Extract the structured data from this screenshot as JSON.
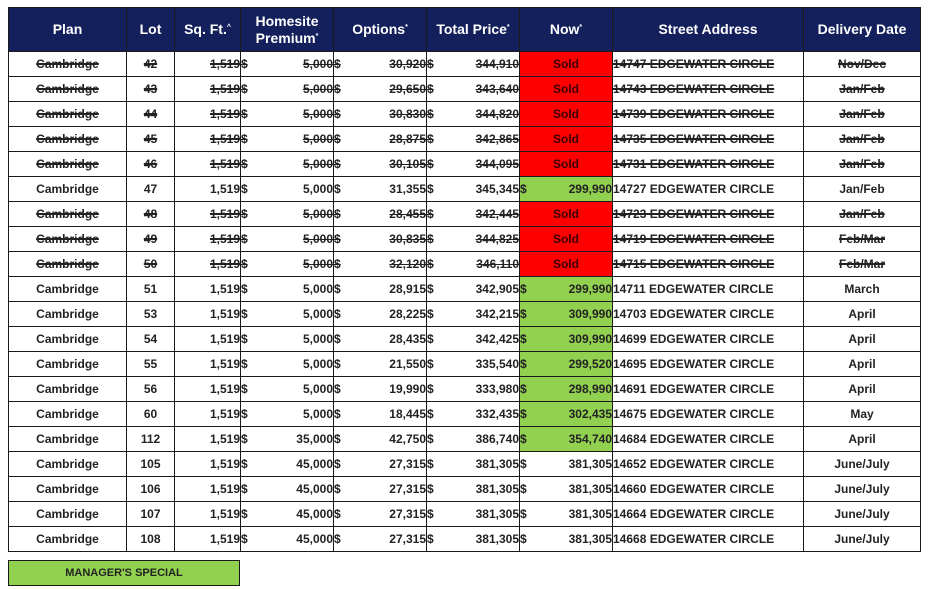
{
  "colors": {
    "header_bg": "#13205c",
    "header_text": "#ffffff",
    "sold_bg": "#ff0000",
    "special_bg": "#92d050"
  },
  "columns": [
    {
      "key": "plan",
      "label": "Plan",
      "mark": ""
    },
    {
      "key": "lot",
      "label": "Lot",
      "mark": ""
    },
    {
      "key": "sqft",
      "label": "Sq. Ft.",
      "mark": "^"
    },
    {
      "key": "premium",
      "label": "Homesite Premium",
      "mark": "*"
    },
    {
      "key": "options",
      "label": "Options",
      "mark": "*"
    },
    {
      "key": "total",
      "label": "Total Price",
      "mark": "*"
    },
    {
      "key": "now",
      "label": "Now",
      "mark": "*"
    },
    {
      "key": "address",
      "label": "Street Address",
      "mark": ""
    },
    {
      "key": "delivery",
      "label": "Delivery Date",
      "mark": ""
    }
  ],
  "currency_symbol": "$",
  "rows": [
    {
      "plan": "Cambridge",
      "lot": "42",
      "sqft": "1,519",
      "premium": "5,000",
      "options": "30,920",
      "total": "344,910",
      "now": "Sold",
      "address": "14747 EDGEWATER CIRCLE",
      "delivery": "Nov/Dec",
      "status": "sold"
    },
    {
      "plan": "Cambridge",
      "lot": "43",
      "sqft": "1,519",
      "premium": "5,000",
      "options": "29,650",
      "total": "343,640",
      "now": "Sold",
      "address": "14743 EDGEWATER CIRCLE",
      "delivery": "Jan/Feb",
      "status": "sold"
    },
    {
      "plan": "Cambridge",
      "lot": "44",
      "sqft": "1,519",
      "premium": "5,000",
      "options": "30,830",
      "total": "344,820",
      "now": "Sold",
      "address": "14739 EDGEWATER CIRCLE",
      "delivery": "Jan/Feb",
      "status": "sold"
    },
    {
      "plan": "Cambridge",
      "lot": "45",
      "sqft": "1,519",
      "premium": "5,000",
      "options": "28,875",
      "total": "342,865",
      "now": "Sold",
      "address": "14735 EDGEWATER CIRCLE",
      "delivery": "Jan/Feb",
      "status": "sold"
    },
    {
      "plan": "Cambridge",
      "lot": "46",
      "sqft": "1,519",
      "premium": "5,000",
      "options": "30,105",
      "total": "344,095",
      "now": "Sold",
      "address": "14731 EDGEWATER CIRCLE",
      "delivery": "Jan/Feb",
      "status": "sold"
    },
    {
      "plan": "Cambridge",
      "lot": "47",
      "sqft": "1,519",
      "premium": "5,000",
      "options": "31,355",
      "total": "345,345",
      "now": "299,990",
      "address": "14727 EDGEWATER CIRCLE",
      "delivery": "Jan/Feb",
      "status": "special"
    },
    {
      "plan": "Cambridge",
      "lot": "48",
      "sqft": "1,519",
      "premium": "5,000",
      "options": "28,455",
      "total": "342,445",
      "now": "Sold",
      "address": "14723 EDGEWATER CIRCLE",
      "delivery": "Jan/Feb",
      "status": "sold"
    },
    {
      "plan": "Cambridge",
      "lot": "49",
      "sqft": "1,519",
      "premium": "5,000",
      "options": "30,835",
      "total": "344,825",
      "now": "Sold",
      "address": "14719 EDGEWATER CIRCLE",
      "delivery": "Feb/Mar",
      "status": "sold"
    },
    {
      "plan": "Cambridge",
      "lot": "50",
      "sqft": "1,519",
      "premium": "5,000",
      "options": "32,120",
      "total": "346,110",
      "now": "Sold",
      "address": "14715 EDGEWATER CIRCLE",
      "delivery": "Feb/Mar",
      "status": "sold"
    },
    {
      "plan": "Cambridge",
      "lot": "51",
      "sqft": "1,519",
      "premium": "5,000",
      "options": "28,915",
      "total": "342,905",
      "now": "299,990",
      "address": "14711 EDGEWATER CIRCLE",
      "delivery": "March",
      "status": "special"
    },
    {
      "plan": "Cambridge",
      "lot": "53",
      "sqft": "1,519",
      "premium": "5,000",
      "options": "28,225",
      "total": "342,215",
      "now": "309,990",
      "address": "14703 EDGEWATER CIRCLE",
      "delivery": "April",
      "status": "special"
    },
    {
      "plan": "Cambridge",
      "lot": "54",
      "sqft": "1,519",
      "premium": "5,000",
      "options": "28,435",
      "total": "342,425",
      "now": "309,990",
      "address": "14699 EDGEWATER CIRCLE",
      "delivery": "April",
      "status": "special"
    },
    {
      "plan": "Cambridge",
      "lot": "55",
      "sqft": "1,519",
      "premium": "5,000",
      "options": "21,550",
      "total": "335,540",
      "now": "299,520",
      "address": "14695 EDGEWATER CIRCLE",
      "delivery": "April",
      "status": "special"
    },
    {
      "plan": "Cambridge",
      "lot": "56",
      "sqft": "1,519",
      "premium": "5,000",
      "options": "19,990",
      "total": "333,980",
      "now": "298,990",
      "address": "14691 EDGEWATER CIRCLE",
      "delivery": "April",
      "status": "special"
    },
    {
      "plan": "Cambridge",
      "lot": "60",
      "sqft": "1,519",
      "premium": "5,000",
      "options": "18,445",
      "total": "332,435",
      "now": "302,435",
      "address": "14675 EDGEWATER CIRCLE",
      "delivery": "May",
      "status": "special"
    },
    {
      "plan": "Cambridge",
      "lot": "112",
      "sqft": "1,519",
      "premium": "35,000",
      "options": "42,750",
      "total": "386,740",
      "now": "354,740",
      "address": "14684 EDGEWATER CIRCLE",
      "delivery": "April",
      "status": "special"
    },
    {
      "plan": "Cambridge",
      "lot": "105",
      "sqft": "1,519",
      "premium": "45,000",
      "options": "27,315",
      "total": "381,305",
      "now": "381,305",
      "address": "14652 EDGEWATER CIRCLE",
      "delivery": "June/July",
      "status": "available"
    },
    {
      "plan": "Cambridge",
      "lot": "106",
      "sqft": "1,519",
      "premium": "45,000",
      "options": "27,315",
      "total": "381,305",
      "now": "381,305",
      "address": "14660 EDGEWATER CIRCLE",
      "delivery": "June/July",
      "status": "available"
    },
    {
      "plan": "Cambridge",
      "lot": "107",
      "sqft": "1,519",
      "premium": "45,000",
      "options": "27,315",
      "total": "381,305",
      "now": "381,305",
      "address": "14664 EDGEWATER CIRCLE",
      "delivery": "June/July",
      "status": "available"
    },
    {
      "plan": "Cambridge",
      "lot": "108",
      "sqft": "1,519",
      "premium": "45,000",
      "options": "27,315",
      "total": "381,305",
      "now": "381,305",
      "address": "14668 EDGEWATER CIRCLE",
      "delivery": "June/July",
      "status": "available"
    }
  ],
  "legend": {
    "label": "MANAGER'S SPECIAL"
  }
}
